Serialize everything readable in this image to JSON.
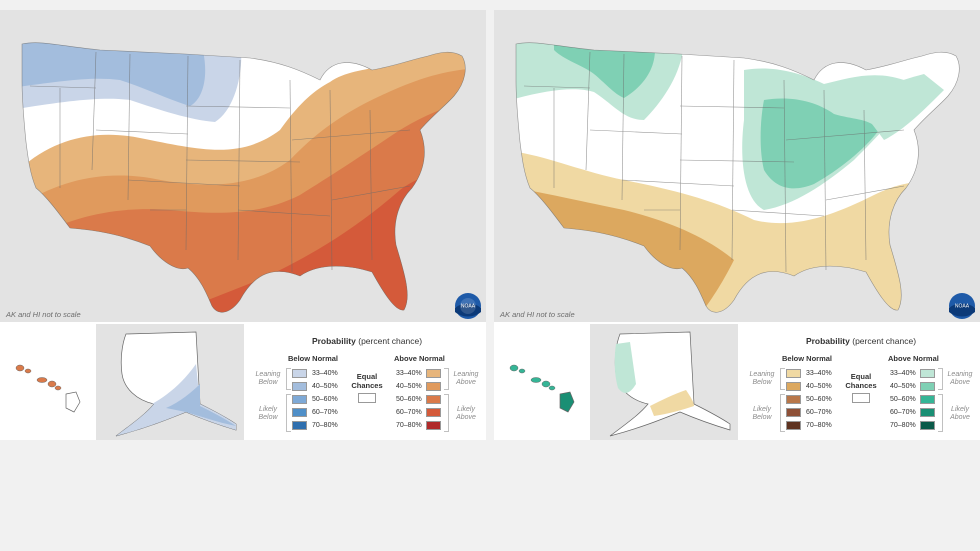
{
  "maps": [
    {
      "id": "temperature",
      "note": "AK and HI not to scale",
      "logo_text": "NOAA",
      "legend": {
        "title": "Probability",
        "title_sub": "(percent chance)",
        "below_header": "Below Normal",
        "above_header": "Above Normal",
        "equal_label": "Equal Chances",
        "leaning_below": "Leaning Below",
        "likely_below": "Likely Below",
        "leaning_above": "Leaning Above",
        "likely_above": "Likely Above",
        "ranges": [
          "33–40%",
          "40–50%",
          "50–60%",
          "60–70%",
          "70–80%"
        ],
        "below_colors": [
          "#c9d5e8",
          "#a3bddd",
          "#7ea9d6",
          "#4f8fc8",
          "#2f6fae"
        ],
        "above_colors": [
          "#e7b57b",
          "#e09a5d",
          "#da7a4a",
          "#d45a3a",
          "#b02a2a"
        ]
      }
    },
    {
      "id": "precipitation",
      "note": "AK and HI not to scale",
      "logo_text": "NOAA",
      "legend": {
        "title": "Probability",
        "title_sub": "(percent chance)",
        "below_header": "Below Normal",
        "above_header": "Above Normal",
        "equal_label": "Equal Chances",
        "leaning_below": "Leaning Below",
        "likely_below": "Likely Below",
        "leaning_above": "Leaning Above",
        "likely_above": "Likely Above",
        "ranges": [
          "33–40%",
          "40–50%",
          "50–60%",
          "60–70%",
          "70–80%"
        ],
        "below_colors": [
          "#f0d9a3",
          "#dca85f",
          "#b8774a",
          "#8e5037",
          "#5e3220"
        ],
        "above_colors": [
          "#bfe6d6",
          "#7fd0b4",
          "#35b596",
          "#1a8f74",
          "#0b5a49"
        ]
      }
    }
  ]
}
